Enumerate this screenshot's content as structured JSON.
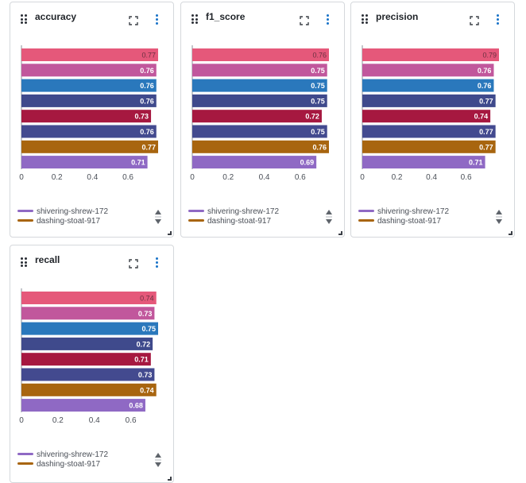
{
  "colors": [
    "#e5587a",
    "#c1579c",
    "#2a78bc",
    "#3f4a8c",
    "#a61840",
    "#434a8f",
    "#a8650f",
    "#8f69c4"
  ],
  "legend_colors": [
    "#8f69c4",
    "#a8650f"
  ],
  "charts": [
    {
      "panel": "accuracy",
      "title": "accuracy",
      "legend": [
        "shivering-shrew-172",
        "dashing-stoat-917"
      ],
      "chart_data": {
        "type": "bar",
        "orientation": "horizontal",
        "title": "accuracy",
        "xlim": [
          0,
          0.77
        ],
        "x_ticks": [
          "0",
          "0.2",
          "0.4",
          "0.6"
        ],
        "values": [
          0.77,
          0.76,
          0.76,
          0.76,
          0.73,
          0.76,
          0.77,
          0.71
        ],
        "labels": [
          "0.77",
          "0.76",
          "0.76",
          "0.76",
          "0.73",
          "0.76",
          "0.77",
          "0.71"
        ]
      }
    },
    {
      "panel": "f1-score",
      "title": "f1_score",
      "legend": [
        "shivering-shrew-172",
        "dashing-stoat-917"
      ],
      "chart_data": {
        "type": "bar",
        "orientation": "horizontal",
        "title": "f1_score",
        "xlim": [
          0,
          0.76
        ],
        "x_ticks": [
          "0",
          "0.2",
          "0.4",
          "0.6"
        ],
        "values": [
          0.76,
          0.75,
          0.75,
          0.75,
          0.72,
          0.75,
          0.76,
          0.69
        ],
        "labels": [
          "0.76",
          "0.75",
          "0.75",
          "0.75",
          "0.72",
          "0.75",
          "0.76",
          "0.69"
        ]
      }
    },
    {
      "panel": "precision",
      "title": "precision",
      "legend": [
        "shivering-shrew-172",
        "dashing-stoat-917"
      ],
      "chart_data": {
        "type": "bar",
        "orientation": "horizontal",
        "title": "precision",
        "xlim": [
          0,
          0.79
        ],
        "x_ticks": [
          "0",
          "0.2",
          "0.4",
          "0.6"
        ],
        "values": [
          0.79,
          0.76,
          0.76,
          0.77,
          0.74,
          0.77,
          0.77,
          0.71
        ],
        "labels": [
          "0.79",
          "0.76",
          "0.76",
          "0.77",
          "0.74",
          "0.77",
          "0.77",
          "0.71"
        ]
      }
    },
    {
      "panel": "recall",
      "title": "recall",
      "legend": [
        "shivering-shrew-172",
        "dashing-stoat-917"
      ],
      "chart_data": {
        "type": "bar",
        "orientation": "horizontal",
        "title": "recall",
        "xlim": [
          0,
          0.75
        ],
        "x_ticks": [
          "0",
          "0.2",
          "0.4",
          "0.6"
        ],
        "values": [
          0.74,
          0.73,
          0.75,
          0.72,
          0.71,
          0.73,
          0.74,
          0.68
        ],
        "labels": [
          "0.74",
          "0.73",
          "0.75",
          "0.72",
          "0.71",
          "0.73",
          "0.74",
          "0.68"
        ]
      }
    }
  ]
}
